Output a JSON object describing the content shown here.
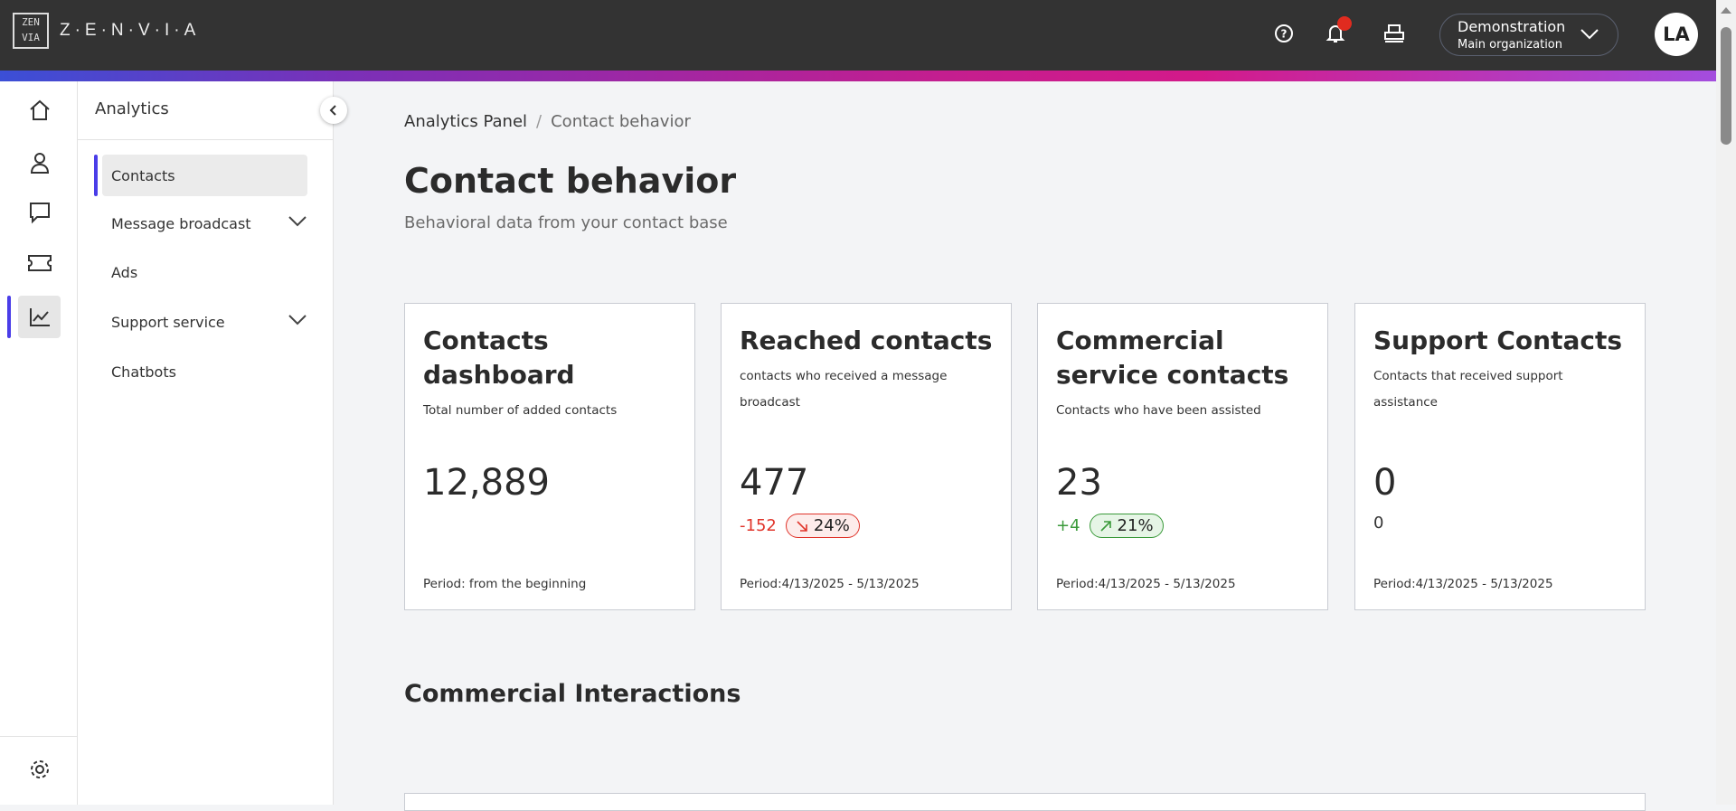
{
  "header": {
    "logo_text": "Z·E·N·V·I·A",
    "logo_mark": "ZEN VIA",
    "org_name": "Demonstration",
    "org_sub": "Main organization",
    "avatar": "LA",
    "icons": [
      "help-icon",
      "bell-icon",
      "printer-icon",
      "chevron-down-icon"
    ],
    "notification_color": "#e02b1f"
  },
  "rail": {
    "items": [
      "home",
      "contacts",
      "chat",
      "tickets",
      "analytics"
    ],
    "active": "analytics",
    "bottom": "settings"
  },
  "sidebar": {
    "title": "Analytics",
    "items": [
      {
        "label": "Contacts",
        "active": true
      },
      {
        "label": "Message broadcast",
        "expandable": true
      },
      {
        "label": "Ads"
      },
      {
        "label": "Support service",
        "expandable": true
      },
      {
        "label": "Chatbots"
      }
    ]
  },
  "breadcrumb": {
    "parent": "Analytics Panel",
    "sep": "/",
    "current": "Contact behavior"
  },
  "page": {
    "title": "Contact behavior",
    "subtitle": "Behavioral data from your contact base"
  },
  "cards": [
    {
      "title": "Contacts dashboard",
      "desc": "Total number of added contacts",
      "value": "12,889",
      "period": "Period: from the beginning"
    },
    {
      "title": "Reached contacts",
      "desc": "contacts who received a message broadcast",
      "value": "477",
      "delta": "-152",
      "pct": "24%",
      "trend": "down",
      "period": "Period:4/13/2025 - 5/13/2025"
    },
    {
      "title": "Commercial service contacts",
      "desc": "Contacts who have been assisted",
      "value": "23",
      "delta": "+4",
      "pct": "21%",
      "trend": "up",
      "period": "Period:4/13/2025 - 5/13/2025"
    },
    {
      "title": "Support Contacts",
      "desc": "Contacts that received support assistance",
      "value": "0",
      "delta": "0",
      "period": "Period:4/13/2025 - 5/13/2025"
    }
  ],
  "section": {
    "title": "Commercial Interactions"
  },
  "colors": {
    "accent": "#4a3de8",
    "negative": "#e0342a",
    "positive": "#3a9a3a",
    "header": "#333333"
  }
}
